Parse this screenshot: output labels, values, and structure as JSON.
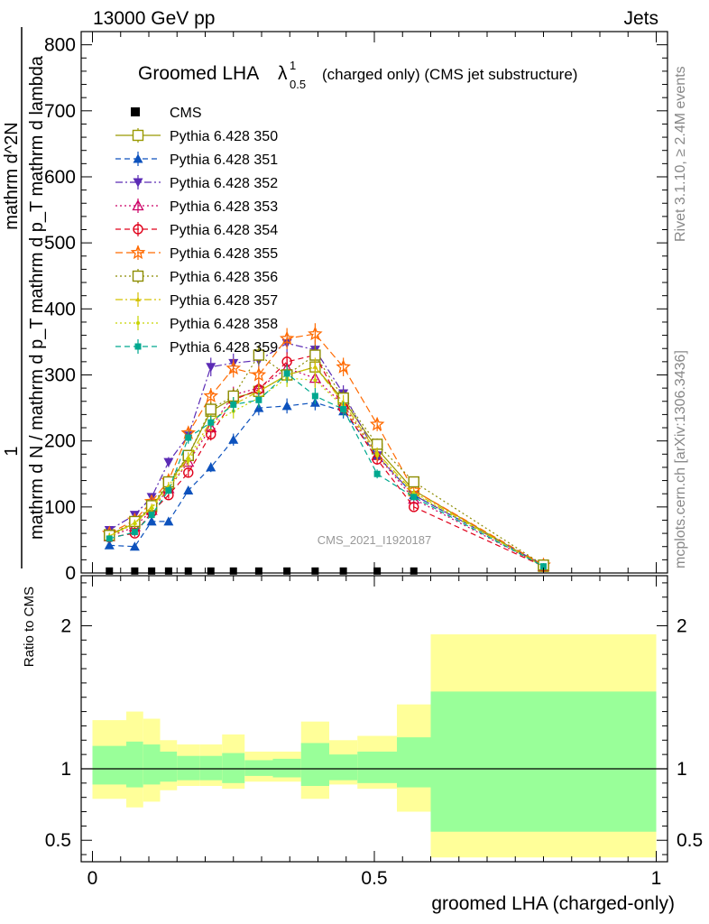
{
  "header": {
    "energy_label": "13000 GeV pp",
    "process_label": "Jets"
  },
  "side_labels": {
    "rivet": "Rivet 3.1.10, ≥ 2.4M events",
    "mcplots": "mcplots.cern.ch [arXiv:1306.3436]"
  },
  "chart_data": {
    "type": "scatter",
    "title_main": "Groomed LHA",
    "title_symbol": "λ",
    "title_sup": "1",
    "title_sub": "0.5",
    "title_rest": "(charged only) (CMS jet substructure)",
    "analysis_label": "CMS_2021_I1920187",
    "xlabel": "groomed LHA (charged-only)",
    "ylabel_num": "1",
    "ylabel_den": "mathrm d N / mathrm d p_T mathrm d p_T mathrm d lambda",
    "ylabel_top": "mathrm d^2N",
    "ratio_ylabel": "Ratio to CMS",
    "xlim": [
      -0.02,
      1.02
    ],
    "ylim": [
      0,
      820
    ],
    "ratio_ylim": [
      0.35,
      2.35
    ],
    "x_ticks": [
      "0",
      "0.5",
      "1"
    ],
    "y_ticks": [
      "0",
      "100",
      "200",
      "300",
      "400",
      "500",
      "600",
      "700",
      "800"
    ],
    "ratio_ticks": [
      "0.5",
      "1",
      "2"
    ],
    "bin_edges": [
      0,
      0.06,
      0.09,
      0.12,
      0.15,
      0.19,
      0.23,
      0.27,
      0.32,
      0.37,
      0.42,
      0.47,
      0.54,
      0.6,
      1.0
    ],
    "cms_values": [
      3,
      3,
      3,
      3,
      3,
      3,
      3,
      3,
      3,
      3,
      3,
      3,
      3,
      3
    ],
    "cms_x": [
      0.03,
      0.075,
      0.105,
      0.135,
      0.17,
      0.21,
      0.25,
      0.295,
      0.345,
      0.395,
      0.445,
      0.505,
      0.57,
      0.8
    ],
    "cms_shown": [
      true,
      true,
      true,
      true,
      true,
      true,
      true,
      true,
      true,
      true,
      true,
      true,
      true,
      false
    ],
    "band_stat": [
      [
        0.89,
        1.16
      ],
      [
        0.87,
        1.19
      ],
      [
        0.89,
        1.17
      ],
      [
        0.91,
        1.12
      ],
      [
        0.92,
        1.09
      ],
      [
        0.92,
        1.09
      ],
      [
        0.9,
        1.11
      ],
      [
        0.95,
        1.06
      ],
      [
        0.94,
        1.07
      ],
      [
        0.88,
        1.18
      ],
      [
        0.92,
        1.1
      ],
      [
        0.9,
        1.12
      ],
      [
        0.87,
        1.22
      ],
      [
        0.56,
        1.54
      ]
    ],
    "band_total": [
      [
        0.79,
        1.34
      ],
      [
        0.73,
        1.4
      ],
      [
        0.77,
        1.35
      ],
      [
        0.85,
        1.2
      ],
      [
        0.88,
        1.17
      ],
      [
        0.88,
        1.17
      ],
      [
        0.86,
        1.24
      ],
      [
        0.91,
        1.12
      ],
      [
        0.91,
        1.12
      ],
      [
        0.79,
        1.33
      ],
      [
        0.89,
        1.2
      ],
      [
        0.86,
        1.23
      ],
      [
        0.7,
        1.45
      ],
      [
        0.38,
        1.94
      ]
    ],
    "legend_title": "CMS",
    "series": [
      {
        "name": "Pythia 6.428 350",
        "color": "#999900",
        "dash": "",
        "marker": "square-open",
        "x": [
          0.03,
          0.075,
          0.105,
          0.135,
          0.17,
          0.21,
          0.25,
          0.295,
          0.345,
          0.395,
          0.445,
          0.505,
          0.57,
          0.8
        ],
        "values": [
          58,
          75,
          100,
          135,
          178,
          245,
          265,
          275,
          300,
          312,
          262,
          188,
          125,
          10
        ]
      },
      {
        "name": "Pythia 6.428 351",
        "color": "#0d52bd",
        "dash": "6,4",
        "marker": "triangle-up",
        "x": [
          0.03,
          0.075,
          0.105,
          0.135,
          0.17,
          0.21,
          0.25,
          0.295,
          0.345,
          0.395,
          0.445,
          0.505,
          0.57,
          0.8
        ],
        "values": [
          42,
          40,
          78,
          78,
          125,
          160,
          202,
          250,
          253,
          258,
          245,
          178,
          118,
          12
        ]
      },
      {
        "name": "Pythia 6.428 352",
        "color": "#5b2bb5",
        "dash": "8,3,2,3",
        "marker": "triangle-down",
        "x": [
          0.03,
          0.075,
          0.105,
          0.135,
          0.17,
          0.21,
          0.25,
          0.295,
          0.345,
          0.395,
          0.445,
          0.505,
          0.57,
          0.8
        ],
        "values": [
          65,
          88,
          115,
          168,
          208,
          312,
          318,
          322,
          348,
          338,
          272,
          178,
          118,
          12
        ]
      },
      {
        "name": "Pythia 6.428 353",
        "color": "#cc0066",
        "dash": "2,3",
        "marker": "triangle-up-open",
        "x": [
          0.03,
          0.075,
          0.105,
          0.135,
          0.17,
          0.21,
          0.25,
          0.295,
          0.345,
          0.395,
          0.445,
          0.505,
          0.57,
          0.8
        ],
        "values": [
          55,
          70,
          95,
          128,
          168,
          220,
          270,
          280,
          310,
          295,
          255,
          178,
          112,
          10
        ]
      },
      {
        "name": "Pythia 6.428 354",
        "color": "#e0001a",
        "dash": "6,4",
        "marker": "circle-open",
        "x": [
          0.03,
          0.075,
          0.105,
          0.135,
          0.17,
          0.21,
          0.25,
          0.295,
          0.345,
          0.395,
          0.445,
          0.505,
          0.57,
          0.8
        ],
        "values": [
          54,
          60,
          92,
          118,
          152,
          210,
          262,
          278,
          320,
          330,
          250,
          172,
          100,
          10
        ]
      },
      {
        "name": "Pythia 6.428 355",
        "color": "#ff6a00",
        "dash": "8,4",
        "marker": "star-open",
        "x": [
          0.03,
          0.075,
          0.105,
          0.135,
          0.17,
          0.21,
          0.25,
          0.295,
          0.345,
          0.395,
          0.445,
          0.505,
          0.57,
          0.8
        ],
        "values": [
          60,
          80,
          108,
          140,
          212,
          268,
          310,
          300,
          355,
          362,
          312,
          225,
          125,
          12
        ]
      },
      {
        "name": "Pythia 6.428 356",
        "color": "#8c8c00",
        "dash": "2,3",
        "marker": "square-open",
        "x": [
          0.03,
          0.075,
          0.105,
          0.135,
          0.17,
          0.21,
          0.25,
          0.295,
          0.345,
          0.395,
          0.445,
          0.505,
          0.57,
          0.8
        ],
        "values": [
          57,
          78,
          102,
          138,
          178,
          248,
          268,
          330,
          300,
          330,
          265,
          195,
          138,
          12
        ]
      },
      {
        "name": "Pythia 6.428 357",
        "color": "#d4c200",
        "dash": "8,3,2,3",
        "marker": "tri-small",
        "x": [
          0.03,
          0.075,
          0.105,
          0.135,
          0.17,
          0.21,
          0.25,
          0.295,
          0.345,
          0.395,
          0.445,
          0.505,
          0.57,
          0.8
        ],
        "values": [
          56,
          76,
          100,
          132,
          175,
          230,
          255,
          275,
          300,
          312,
          258,
          182,
          122,
          10
        ]
      },
      {
        "name": "Pythia 6.428 358",
        "color": "#c8d400",
        "dash": "2,3",
        "marker": "dot",
        "x": [
          0.03,
          0.075,
          0.105,
          0.135,
          0.17,
          0.21,
          0.25,
          0.295,
          0.345,
          0.395,
          0.445,
          0.505,
          0.57,
          0.8
        ],
        "values": [
          55,
          75,
          98,
          128,
          170,
          225,
          245,
          265,
          295,
          292,
          252,
          178,
          120,
          10
        ]
      },
      {
        "name": "Pythia 6.428 359",
        "color": "#00a88f",
        "dash": "6,4",
        "marker": "square-filled",
        "x": [
          0.03,
          0.075,
          0.105,
          0.135,
          0.17,
          0.21,
          0.25,
          0.295,
          0.345,
          0.395,
          0.445,
          0.505,
          0.57,
          0.8
        ],
        "values": [
          52,
          62,
          88,
          125,
          205,
          228,
          255,
          262,
          302,
          268,
          248,
          150,
          115,
          10
        ]
      }
    ]
  }
}
